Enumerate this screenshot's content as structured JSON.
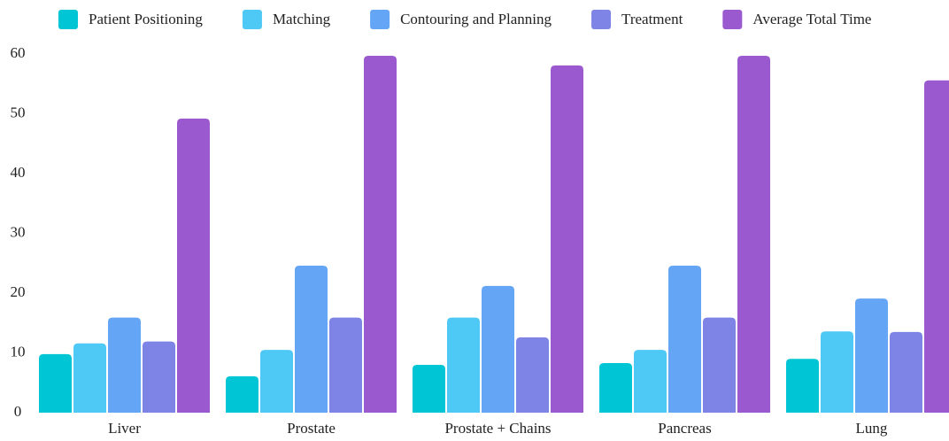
{
  "chart_data": {
    "type": "bar",
    "categories": [
      "Liver",
      "Prostate",
      "Prostate + Chains",
      "Pancreas",
      "Lung"
    ],
    "series": [
      {
        "name": "Patient Positioning",
        "color": "#00c5d4",
        "values": [
          9.8,
          6.1,
          8.0,
          8.3,
          9.0
        ]
      },
      {
        "name": "Matching",
        "color": "#4ec8f5",
        "values": [
          11.6,
          10.5,
          15.9,
          10.5,
          13.6
        ]
      },
      {
        "name": "Contouring and Planning",
        "color": "#64a5f5",
        "values": [
          15.9,
          24.6,
          21.2,
          24.6,
          19.1
        ]
      },
      {
        "name": "Treatment",
        "color": "#7e83e6",
        "values": [
          11.9,
          15.9,
          12.6,
          15.9,
          13.5
        ]
      },
      {
        "name": "Average Total Time",
        "color": "#9b59cf",
        "values": [
          49.2,
          59.7,
          58.1,
          59.7,
          55.6
        ]
      }
    ],
    "ylim": [
      0,
      60
    ],
    "yticks": [
      0,
      10,
      20,
      30,
      40,
      50,
      60
    ],
    "grid": false,
    "legend": "top"
  }
}
